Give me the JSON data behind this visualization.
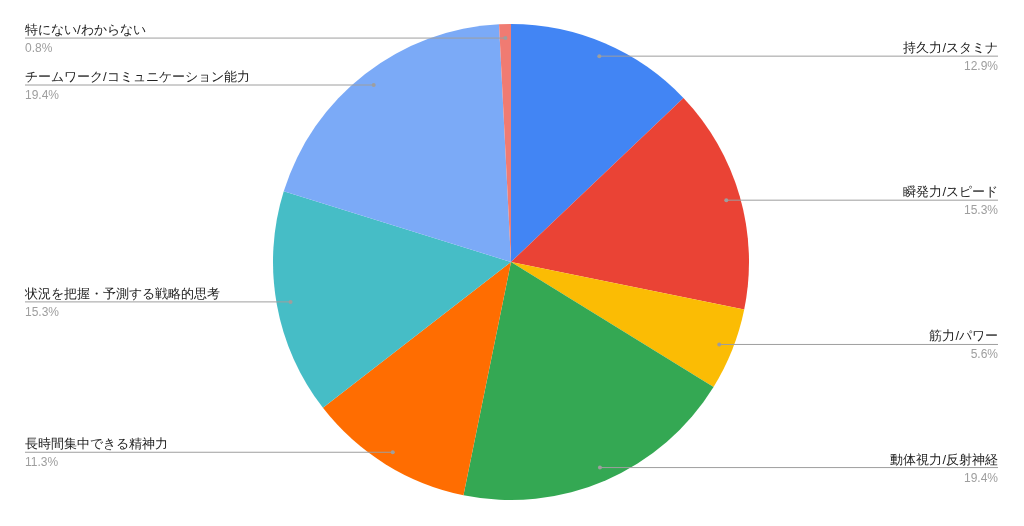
{
  "chart_data": {
    "type": "pie",
    "categories": [
      "持久力/スタミナ",
      "瞬発力/スピード",
      "筋力/パワー",
      "動体視力/反射神経",
      "長時間集中できる精神力",
      "状況を把握・予測する戦略的思考",
      "チームワーク/コミュニケーション能力",
      "特にない/わからない"
    ],
    "values": [
      12.9,
      15.3,
      5.6,
      19.4,
      11.3,
      15.3,
      19.4,
      0.8
    ],
    "colors": [
      "#4285f4",
      "#ea4335",
      "#fbbc04",
      "#34a853",
      "#ff6d01",
      "#46bdc6",
      "#7baaf7",
      "#f07b72"
    ],
    "value_labels": [
      "12.9%",
      "15.3%",
      "5.6%",
      "19.4%",
      "11.3%",
      "15.3%",
      "19.4%",
      "0.8%"
    ]
  }
}
